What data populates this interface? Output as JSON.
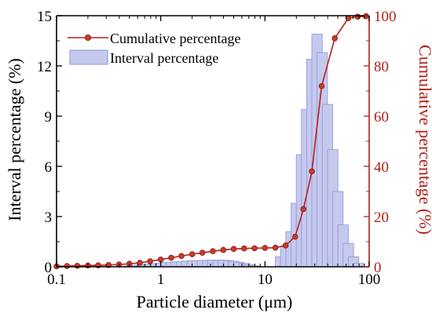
{
  "chart_data": {
    "type": "bar+line",
    "xlabel": "Particle diameter (μm)",
    "ylabel_left": "Interval percentage (%)",
    "ylabel_right": "Cumulative percentage (%)",
    "x_scale": "log",
    "xlim": [
      0.1,
      100
    ],
    "ylim_left": [
      0,
      15
    ],
    "ylim_right": [
      0,
      100
    ],
    "x_ticks": [
      {
        "value": 0.1,
        "label": "0.1"
      },
      {
        "value": 1,
        "label": "1"
      },
      {
        "value": 10,
        "label": "10"
      },
      {
        "value": 100,
        "label": "100"
      }
    ],
    "y_left_ticks": [
      {
        "value": 0,
        "label": "0"
      },
      {
        "value": 3,
        "label": "3"
      },
      {
        "value": 6,
        "label": "6"
      },
      {
        "value": 9,
        "label": "9"
      },
      {
        "value": 12,
        "label": "12"
      },
      {
        "value": 15,
        "label": "15"
      }
    ],
    "y_right_ticks": [
      {
        "value": 0,
        "label": "0"
      },
      {
        "value": 20,
        "label": "20"
      },
      {
        "value": 40,
        "label": "40"
      },
      {
        "value": 60,
        "label": "60"
      },
      {
        "value": 80,
        "label": "80"
      },
      {
        "value": 100,
        "label": "100"
      }
    ],
    "legend": {
      "position": "top-left",
      "entries": [
        {
          "label": "Cumulative percentage",
          "marker": "line-circle"
        },
        {
          "label": "Interval percentage",
          "marker": "bar"
        }
      ]
    },
    "colors": {
      "cumulative": "#b2201c",
      "marker": "#c93a2a",
      "bar_fill": "#c5c9ee",
      "bar_stroke": "#8f95d4",
      "axis": "#000000",
      "right_axis": "#b2201c"
    },
    "series": [
      {
        "name": "Interval percentage",
        "axis": "left",
        "type": "bar",
        "points": [
          {
            "x": 0.5,
            "y": 0.05
          },
          {
            "x": 0.56,
            "y": 0.08
          },
          {
            "x": 0.63,
            "y": 0.1
          },
          {
            "x": 0.71,
            "y": 0.13
          },
          {
            "x": 0.8,
            "y": 0.16
          },
          {
            "x": 0.89,
            "y": 0.19
          },
          {
            "x": 1.0,
            "y": 0.22
          },
          {
            "x": 1.12,
            "y": 0.25
          },
          {
            "x": 1.26,
            "y": 0.28
          },
          {
            "x": 1.41,
            "y": 0.3
          },
          {
            "x": 1.58,
            "y": 0.32
          },
          {
            "x": 1.78,
            "y": 0.34
          },
          {
            "x": 2.0,
            "y": 0.36
          },
          {
            "x": 2.24,
            "y": 0.37
          },
          {
            "x": 2.51,
            "y": 0.38
          },
          {
            "x": 2.82,
            "y": 0.39
          },
          {
            "x": 3.16,
            "y": 0.4
          },
          {
            "x": 3.55,
            "y": 0.4
          },
          {
            "x": 3.98,
            "y": 0.39
          },
          {
            "x": 4.47,
            "y": 0.37
          },
          {
            "x": 5.01,
            "y": 0.33
          },
          {
            "x": 5.62,
            "y": 0.27
          },
          {
            "x": 6.31,
            "y": 0.2
          },
          {
            "x": 7.08,
            "y": 0.12
          },
          {
            "x": 7.94,
            "y": 0.06
          },
          {
            "x": 14.1,
            "y": 0.6
          },
          {
            "x": 15.8,
            "y": 1.2
          },
          {
            "x": 17.8,
            "y": 2.1
          },
          {
            "x": 20.0,
            "y": 3.8
          },
          {
            "x": 22.4,
            "y": 6.7
          },
          {
            "x": 25.1,
            "y": 9.4
          },
          {
            "x": 28.2,
            "y": 12.4
          },
          {
            "x": 31.6,
            "y": 13.9
          },
          {
            "x": 35.5,
            "y": 12.8
          },
          {
            "x": 39.8,
            "y": 9.7
          },
          {
            "x": 44.7,
            "y": 7.0
          },
          {
            "x": 50.1,
            "y": 4.5
          },
          {
            "x": 56.2,
            "y": 2.5
          },
          {
            "x": 63.1,
            "y": 1.4
          },
          {
            "x": 70.8,
            "y": 0.6
          },
          {
            "x": 79.4,
            "y": 0.2
          }
        ]
      },
      {
        "name": "Cumulative percentage",
        "axis": "right",
        "type": "line",
        "points": [
          {
            "x": 0.1,
            "y": 0.2
          },
          {
            "x": 0.126,
            "y": 0.3
          },
          {
            "x": 0.158,
            "y": 0.4
          },
          {
            "x": 0.2,
            "y": 0.5
          },
          {
            "x": 0.251,
            "y": 0.6
          },
          {
            "x": 0.316,
            "y": 0.7
          },
          {
            "x": 0.398,
            "y": 0.9
          },
          {
            "x": 0.5,
            "y": 1.2
          },
          {
            "x": 0.63,
            "y": 1.6
          },
          {
            "x": 0.79,
            "y": 2.2
          },
          {
            "x": 1.0,
            "y": 2.9
          },
          {
            "x": 1.26,
            "y": 3.6
          },
          {
            "x": 1.58,
            "y": 4.3
          },
          {
            "x": 2.0,
            "y": 5.0
          },
          {
            "x": 2.51,
            "y": 5.6
          },
          {
            "x": 3.16,
            "y": 6.2
          },
          {
            "x": 3.98,
            "y": 6.7
          },
          {
            "x": 5.01,
            "y": 7.1
          },
          {
            "x": 6.31,
            "y": 7.3
          },
          {
            "x": 7.94,
            "y": 7.4
          },
          {
            "x": 10.0,
            "y": 7.5
          },
          {
            "x": 12.6,
            "y": 7.6
          },
          {
            "x": 15.8,
            "y": 8.5
          },
          {
            "x": 19.5,
            "y": 12.0
          },
          {
            "x": 23.4,
            "y": 23.0
          },
          {
            "x": 28.2,
            "y": 38.0
          },
          {
            "x": 35.0,
            "y": 72.0
          },
          {
            "x": 46.8,
            "y": 91.0
          },
          {
            "x": 63.1,
            "y": 99.0
          },
          {
            "x": 77.6,
            "y": 99.6
          },
          {
            "x": 93.3,
            "y": 99.8
          }
        ]
      }
    ]
  }
}
